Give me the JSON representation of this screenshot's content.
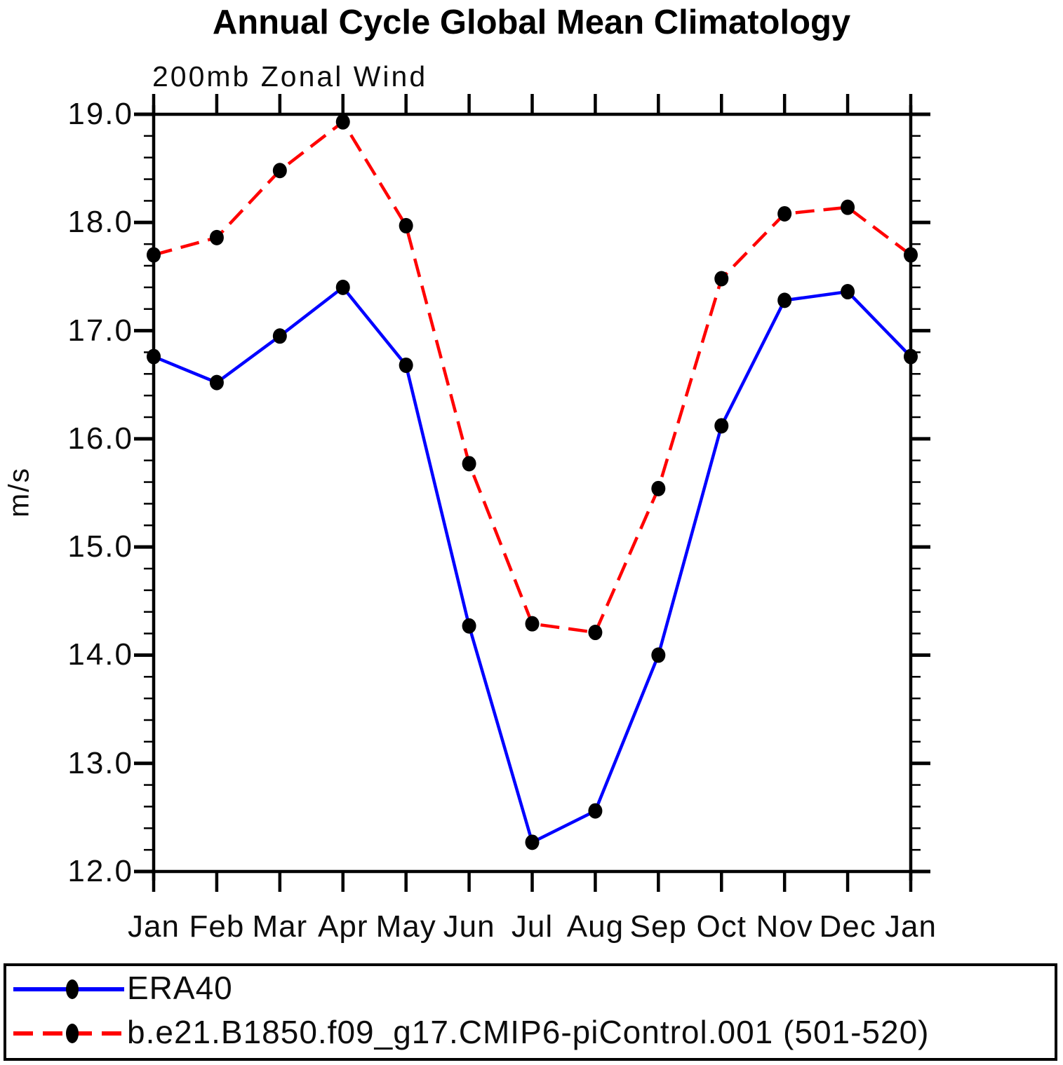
{
  "title": "Annual Cycle Global Mean Climatology",
  "subtitle": "200mb Zonal Wind",
  "y_axis_label": "m/s",
  "legend": {
    "items": [
      {
        "label": "ERA40"
      },
      {
        "label": "b.e21.B1850.f09_g17.CMIP6-piControl.001 (501-520)"
      }
    ]
  },
  "chart_data": {
    "type": "line",
    "title": "Annual Cycle Global Mean Climatology",
    "subtitle": "200mb Zonal Wind",
    "ylabel": "m/s",
    "xlabel": "",
    "categories": [
      "Jan",
      "Feb",
      "Mar",
      "Apr",
      "May",
      "Jun",
      "Jul",
      "Aug",
      "Sep",
      "Oct",
      "Nov",
      "Dec",
      "Jan"
    ],
    "series": [
      {
        "name": "ERA40",
        "color": "#0000ff",
        "style": "solid",
        "values": [
          16.76,
          16.52,
          16.95,
          17.4,
          16.68,
          14.27,
          12.27,
          12.56,
          14.0,
          16.12,
          17.28,
          17.36,
          16.76
        ]
      },
      {
        "name": "b.e21.B1850.f09_g17.CMIP6-piControl.001 (501-520)",
        "color": "#ff0000",
        "style": "dashed",
        "values": [
          17.7,
          17.86,
          18.48,
          18.93,
          17.97,
          15.77,
          14.29,
          14.21,
          15.54,
          17.48,
          18.08,
          18.14,
          17.7
        ]
      }
    ],
    "marker": "filled-circle",
    "marker_color": "#000000",
    "axis_color": "#000000",
    "ylim": [
      12.0,
      19.0
    ],
    "y_major_step": 1.0,
    "y_minor_step": 0.2,
    "y_tick_labels": [
      "12.0",
      "13.0",
      "14.0",
      "15.0",
      "16.0",
      "17.0",
      "18.0",
      "19.0"
    ],
    "grid": false,
    "legend_position": "bottom"
  }
}
